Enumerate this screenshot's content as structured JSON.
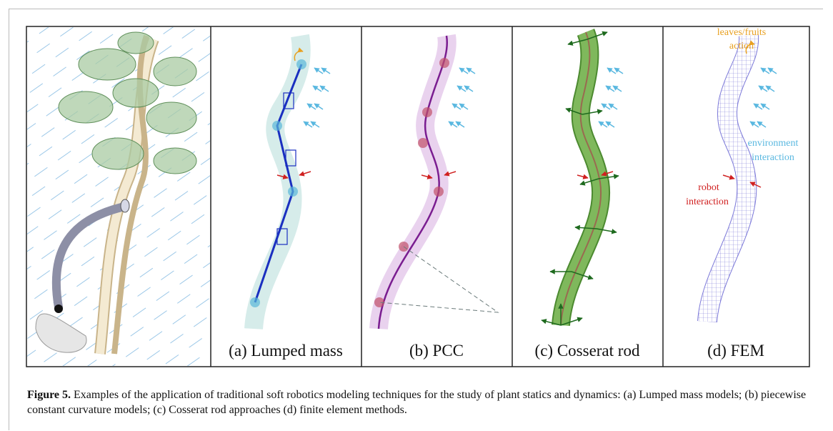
{
  "figure": {
    "panels": [
      {
        "label": "(a) Lumped mass"
      },
      {
        "label": "(b) PCC"
      },
      {
        "label": "(c) Cosserat rod"
      },
      {
        "label": "(d) FEM"
      }
    ],
    "annotations": {
      "leaves": [
        "leaves/fruits",
        "action"
      ],
      "environment": [
        "environment",
        "interaction"
      ],
      "robot": [
        "robot",
        "interaction"
      ]
    },
    "caption": {
      "label": "Figure 5.",
      "text": "Examples of the application of traditional soft robotics modeling techniques for the study of plant statics and dynamics: (a) Lumped mass models; (b) piecewise constant curvature models; (c) Cosserat rod approaches (d) finite element methods."
    }
  }
}
